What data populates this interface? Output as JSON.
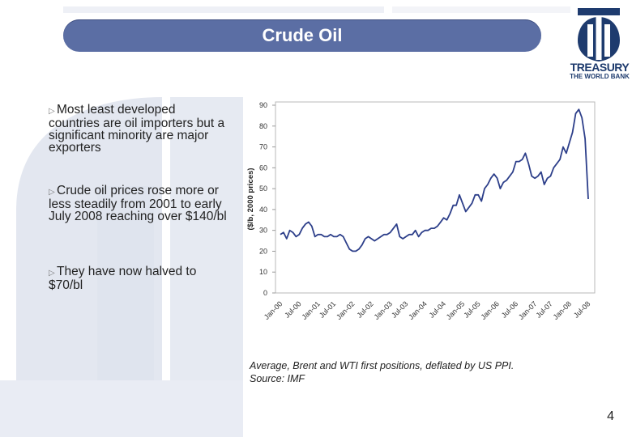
{
  "slide": {
    "title": "Crude Oil",
    "page_number": "4",
    "logo": {
      "line1": "TREASURY",
      "line2": "THE WORLD BANK"
    },
    "bullets": [
      "Most least developed countries are oil importers but a significant minority are major exporters",
      "Crude oil prices rose more or less steadily from 2001 to early July 2008 reaching over $140/bl",
      "They have now halved to $70/bl"
    ],
    "caption_line1": "Average, Brent and WTI first positions, deflated by US PPI.",
    "caption_line2": "Source: IMF",
    "colors": {
      "title_bar": "#5b6ea4",
      "logo": "#1e3b6e",
      "watermark": "#e3e7f0",
      "series": "#2d3f8a"
    }
  },
  "chart_data": {
    "type": "line",
    "title": "",
    "xlabel": "",
    "ylabel": "($/b, 2000 prices)",
    "ylim": [
      0,
      90
    ],
    "yticks": [
      0,
      10,
      20,
      30,
      40,
      50,
      60,
      70,
      80,
      90
    ],
    "grid": false,
    "xtick_labels": [
      "Jan-00",
      "Jul-00",
      "Jan-01",
      "Jul-01",
      "Jan-02",
      "Jul-02",
      "Jan-03",
      "Jul-03",
      "Jan-04",
      "Jul-04",
      "Jan-05",
      "Jul-05",
      "Jan-06",
      "Jul-06",
      "Jan-07",
      "Jul-07",
      "Jan-08",
      "Jul-08"
    ],
    "xtick_labels_shown": [
      "Jan-00",
      "Jul-00",
      "Jan-01",
      "Jul-01",
      "Jan-02",
      "Jul-02",
      "Jan-03",
      "Jul-03",
      "Jan-04",
      "Jul-04",
      "Jan-05",
      "Jul-05",
      "Jan-06",
      "Jul-06",
      "Jan-07",
      "Jul-07",
      "Jan-08",
      "Jul-08"
    ],
    "series": [
      {
        "values": [
          28,
          29,
          26,
          30,
          29,
          27,
          28,
          31,
          33,
          34,
          32,
          27,
          28,
          28,
          27,
          27,
          28,
          27,
          27,
          28,
          27,
          24,
          21,
          20,
          20,
          21,
          23,
          26,
          27,
          26,
          25,
          26,
          27,
          28,
          28,
          29,
          31,
          33,
          27,
          26,
          27,
          28,
          28,
          30,
          27,
          29,
          30,
          30,
          31,
          31,
          32,
          34,
          36,
          35,
          38,
          42,
          42,
          47,
          43,
          39,
          41,
          43,
          47,
          47,
          44,
          50,
          52,
          55,
          57,
          55,
          50,
          53,
          54,
          56,
          58,
          63,
          63,
          64,
          67,
          62,
          56,
          55,
          56,
          58,
          52,
          55,
          56,
          60,
          62,
          64,
          70,
          67,
          72,
          77,
          86,
          88,
          84,
          74,
          45
        ]
      }
    ],
    "annotations": []
  }
}
